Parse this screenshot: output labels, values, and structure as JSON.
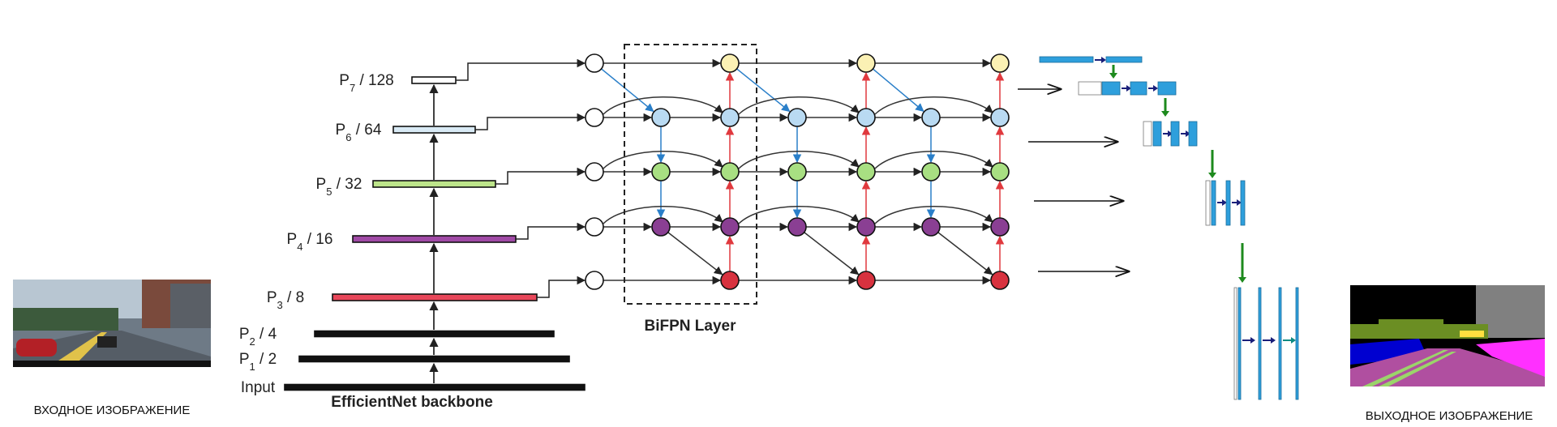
{
  "input_caption": "ВХОДНОЕ ИЗОБРАЖЕНИЕ",
  "output_caption": "ВЫХОДНОЕ ИЗОБРАЖЕНИЕ",
  "backbone": {
    "title": "EfficientNet backbone",
    "levels": [
      {
        "base": "Input",
        "sub": "",
        "suffix": "",
        "color": "#111111"
      },
      {
        "base": "P",
        "sub": "1",
        "suffix": " / 2",
        "color": "#111111"
      },
      {
        "base": "P",
        "sub": "2",
        "suffix": " / 4",
        "color": "#111111"
      },
      {
        "base": "P",
        "sub": "3",
        "suffix": " / 8",
        "color": "#e8475a"
      },
      {
        "base": "P",
        "sub": "4",
        "suffix": " / 16",
        "color": "#a04aa6"
      },
      {
        "base": "P",
        "sub": "5",
        "suffix": " / 32",
        "color": "#bde58a"
      },
      {
        "base": "P",
        "sub": "6",
        "suffix": " / 64",
        "color": "#d9eaf5"
      },
      {
        "base": "P",
        "sub": "7",
        "suffix": " / 128",
        "color": "#ffffff"
      }
    ]
  },
  "bifpn": {
    "label": "BiFPN Layer",
    "node_colors": {
      "P7": "#fbf1b4",
      "P6": "#b9daf2",
      "P5": "#a8df82",
      "P4": "#8a3f93",
      "P3": "#d8323f"
    },
    "edge_colors": {
      "down": "#2a7fc9",
      "up": "#e0393e",
      "lateral": "#333333"
    }
  },
  "decoder": {
    "block_color": "#2e9fdc",
    "pool_arrow_color": "#1d8a1d",
    "conv_arrow_color": "#1a1f7a",
    "skip_arrow_color": "#0f8a82"
  }
}
